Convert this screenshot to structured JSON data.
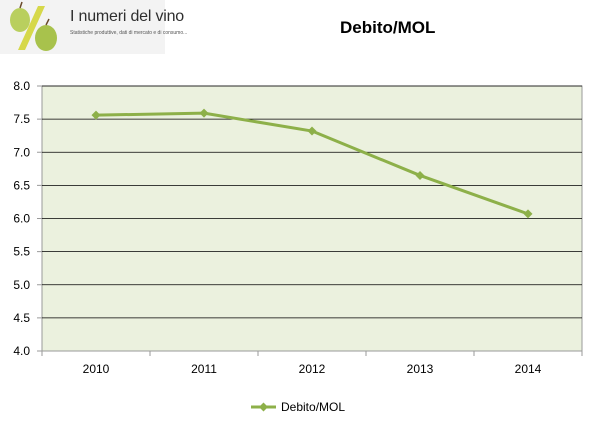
{
  "logo": {
    "title": "I numeri del vino",
    "subtitle": "Statistiche produttive, dati di mercato e di consumo..."
  },
  "colors": {
    "series": "#8db049",
    "plot_background": "#ebf1de",
    "gridline": "#000000"
  },
  "chart_data": {
    "type": "line",
    "title": "Debito/MOL",
    "xlabel": "",
    "ylabel": "",
    "categories": [
      "2010",
      "2011",
      "2012",
      "2013",
      "2014"
    ],
    "series": [
      {
        "name": "Debito/MOL",
        "values": [
          7.56,
          7.59,
          7.32,
          6.65,
          6.07
        ]
      }
    ],
    "ylim": [
      4.0,
      8.0
    ],
    "yticks": [
      "4.0",
      "4.5",
      "5.0",
      "5.5",
      "6.0",
      "6.5",
      "7.0",
      "7.5",
      "8.0"
    ],
    "grid": true,
    "legend": "bottom",
    "marker": "diamond"
  }
}
